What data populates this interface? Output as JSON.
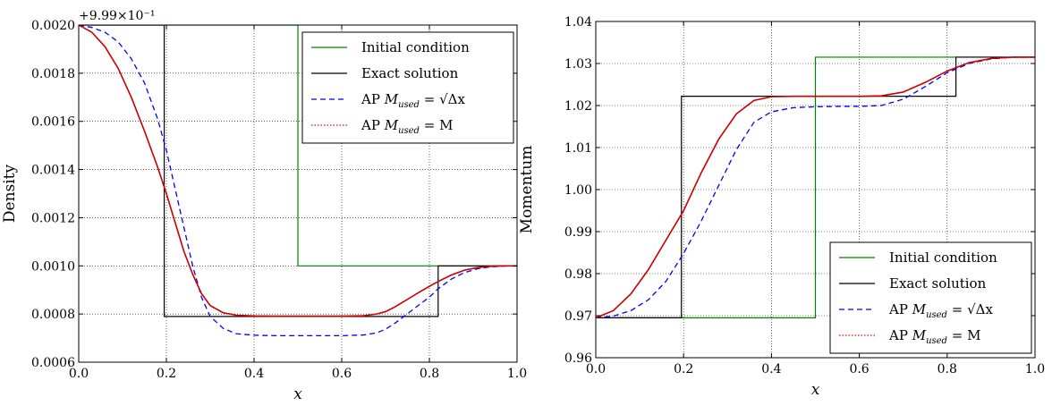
{
  "chart_data": [
    {
      "type": "line",
      "xlabel": "x",
      "ylabel": "Density",
      "offset_label": "+9.99×10⁻¹",
      "xlim": [
        0.0,
        1.0
      ],
      "ylim": [
        0.0006,
        0.002
      ],
      "xticks": [
        "0.0",
        "0.2",
        "0.4",
        "0.6",
        "0.8",
        "1.0"
      ],
      "yticks": [
        "0.0006",
        "0.0008",
        "0.0010",
        "0.0012",
        "0.0014",
        "0.0016",
        "0.0018",
        "0.0020"
      ],
      "grid": true,
      "legend_position": "top-right",
      "series": [
        {
          "name": "Initial condition",
          "color": "#008000",
          "style": "solid",
          "x": [
            0.0,
            0.5,
            0.5,
            1.0
          ],
          "y": [
            0.002,
            0.002,
            0.001,
            0.001
          ]
        },
        {
          "name": "Exact solution",
          "color": "#000000",
          "style": "solid",
          "x": [
            0.0,
            0.195,
            0.195,
            0.82,
            0.82,
            1.0
          ],
          "y": [
            0.002,
            0.002,
            0.00079,
            0.00079,
            0.001,
            0.001
          ]
        },
        {
          "name": "AP M_used = √Δx",
          "color": "#0000ff",
          "style": "dashed",
          "x": [
            0.0,
            0.03,
            0.06,
            0.09,
            0.12,
            0.15,
            0.18,
            0.2,
            0.22,
            0.24,
            0.26,
            0.28,
            0.3,
            0.33,
            0.36,
            0.4,
            0.45,
            0.5,
            0.55,
            0.6,
            0.65,
            0.68,
            0.7,
            0.72,
            0.74,
            0.76,
            0.78,
            0.8,
            0.82,
            0.85,
            0.88,
            0.91,
            0.94,
            0.97,
            1.0
          ],
          "y": [
            0.002,
            0.00199,
            0.00197,
            0.00193,
            0.00186,
            0.00176,
            0.00161,
            0.00148,
            0.00132,
            0.00116,
            0.001,
            0.00087,
            0.00079,
            0.00074,
            0.000718,
            0.000712,
            0.00071,
            0.00071,
            0.00071,
            0.00071,
            0.000713,
            0.000722,
            0.000737,
            0.00076,
            0.000787,
            0.000815,
            0.000843,
            0.00087,
            0.000905,
            0.000945,
            0.000972,
            0.000988,
            0.000996,
            0.000999,
            0.001
          ]
        },
        {
          "name": "AP M_used = M",
          "color": "#ff0000",
          "style": "dotted",
          "x": [
            0.0,
            0.03,
            0.06,
            0.09,
            0.12,
            0.15,
            0.18,
            0.2,
            0.22,
            0.24,
            0.26,
            0.28,
            0.3,
            0.33,
            0.36,
            0.4,
            0.45,
            0.5,
            0.55,
            0.6,
            0.65,
            0.68,
            0.7,
            0.72,
            0.74,
            0.76,
            0.78,
            0.8,
            0.82,
            0.85,
            0.88,
            0.91,
            0.94,
            0.97,
            1.0
          ],
          "y": [
            0.002,
            0.00197,
            0.00191,
            0.00182,
            0.0017,
            0.00156,
            0.00141,
            0.0013,
            0.00118,
            0.00106,
            0.000965,
            0.000885,
            0.000835,
            0.000805,
            0.000795,
            0.000792,
            0.000791,
            0.000791,
            0.000791,
            0.000791,
            0.000793,
            0.0008,
            0.00081,
            0.000828,
            0.00085,
            0.000872,
            0.000894,
            0.000915,
            0.000935,
            0.000962,
            0.000982,
            0.000993,
            0.000998,
            0.001,
            0.001
          ]
        },
        {
          "name": "",
          "color": "#cc0000",
          "style": "solid",
          "in_legend": false,
          "x": [
            0.0,
            0.03,
            0.06,
            0.09,
            0.12,
            0.15,
            0.18,
            0.2,
            0.22,
            0.24,
            0.26,
            0.28,
            0.3,
            0.33,
            0.36,
            0.4,
            0.45,
            0.5,
            0.55,
            0.6,
            0.65,
            0.68,
            0.7,
            0.72,
            0.74,
            0.76,
            0.78,
            0.8,
            0.82,
            0.85,
            0.88,
            0.91,
            0.94,
            0.97,
            1.0
          ],
          "y": [
            0.002,
            0.00197,
            0.00191,
            0.00182,
            0.0017,
            0.00156,
            0.00141,
            0.0013,
            0.00118,
            0.00106,
            0.000965,
            0.000885,
            0.000835,
            0.000805,
            0.000795,
            0.000792,
            0.000791,
            0.000791,
            0.000791,
            0.000791,
            0.000793,
            0.0008,
            0.00081,
            0.000828,
            0.00085,
            0.000872,
            0.000894,
            0.000915,
            0.000935,
            0.000962,
            0.000982,
            0.000993,
            0.000998,
            0.001,
            0.001
          ]
        }
      ]
    },
    {
      "type": "line",
      "xlabel": "x",
      "ylabel": "Momentum",
      "xlim": [
        0.0,
        1.0
      ],
      "ylim": [
        0.96,
        1.04
      ],
      "xticks": [
        "0.0",
        "0.2",
        "0.4",
        "0.6",
        "0.8",
        "1.0"
      ],
      "yticks": [
        "0.96",
        "0.97",
        "0.98",
        "0.99",
        "1.00",
        "1.01",
        "1.02",
        "1.03",
        "1.04"
      ],
      "grid": true,
      "legend_position": "bottom-right",
      "series": [
        {
          "name": "Initial condition",
          "color": "#008000",
          "style": "solid",
          "x": [
            0.0,
            0.5,
            0.5,
            1.0
          ],
          "y": [
            0.9695,
            0.9695,
            1.0315,
            1.0315
          ]
        },
        {
          "name": "Exact solution",
          "color": "#000000",
          "style": "solid",
          "x": [
            0.0,
            0.195,
            0.195,
            0.82,
            0.82,
            1.0
          ],
          "y": [
            0.9695,
            0.9695,
            1.0222,
            1.0222,
            1.0315,
            1.0315
          ]
        },
        {
          "name": "AP M_used = √Δx",
          "color": "#0000ff",
          "style": "dashed",
          "x": [
            0.0,
            0.04,
            0.08,
            0.12,
            0.16,
            0.2,
            0.24,
            0.28,
            0.32,
            0.36,
            0.4,
            0.45,
            0.5,
            0.55,
            0.6,
            0.65,
            0.7,
            0.75,
            0.8,
            0.85,
            0.9,
            0.95,
            1.0
          ],
          "y": [
            0.9695,
            0.9699,
            0.9712,
            0.9738,
            0.9782,
            0.9848,
            0.9925,
            1.001,
            1.0095,
            1.016,
            1.0185,
            1.0195,
            1.0197,
            1.0198,
            1.0198,
            1.02,
            1.0215,
            1.0245,
            1.0278,
            1.03,
            1.0311,
            1.0315,
            1.0315
          ]
        },
        {
          "name": "AP M_used = M",
          "color": "#ff0000",
          "style": "dotted",
          "x": [
            0.0,
            0.04,
            0.08,
            0.12,
            0.16,
            0.2,
            0.24,
            0.28,
            0.32,
            0.36,
            0.4,
            0.45,
            0.5,
            0.55,
            0.6,
            0.65,
            0.7,
            0.75,
            0.8,
            0.85,
            0.9,
            0.95,
            1.0
          ],
          "y": [
            0.9695,
            0.9712,
            0.9752,
            0.981,
            0.988,
            0.995,
            1.004,
            1.012,
            1.018,
            1.0212,
            1.0221,
            1.0222,
            1.0222,
            1.0222,
            1.0222,
            1.0223,
            1.0232,
            1.0255,
            1.0282,
            1.0302,
            1.0312,
            1.0315,
            1.0315
          ]
        },
        {
          "name": "",
          "color": "#cc0000",
          "style": "solid",
          "in_legend": false,
          "x": [
            0.0,
            0.04,
            0.08,
            0.12,
            0.16,
            0.2,
            0.24,
            0.28,
            0.32,
            0.36,
            0.4,
            0.45,
            0.5,
            0.55,
            0.6,
            0.65,
            0.7,
            0.75,
            0.8,
            0.85,
            0.9,
            0.95,
            1.0
          ],
          "y": [
            0.9695,
            0.9712,
            0.9752,
            0.981,
            0.988,
            0.995,
            1.004,
            1.012,
            1.018,
            1.0212,
            1.0221,
            1.0222,
            1.0222,
            1.0222,
            1.0222,
            1.0223,
            1.0232,
            1.0255,
            1.0282,
            1.0302,
            1.0312,
            1.0315,
            1.0315
          ]
        }
      ]
    }
  ]
}
